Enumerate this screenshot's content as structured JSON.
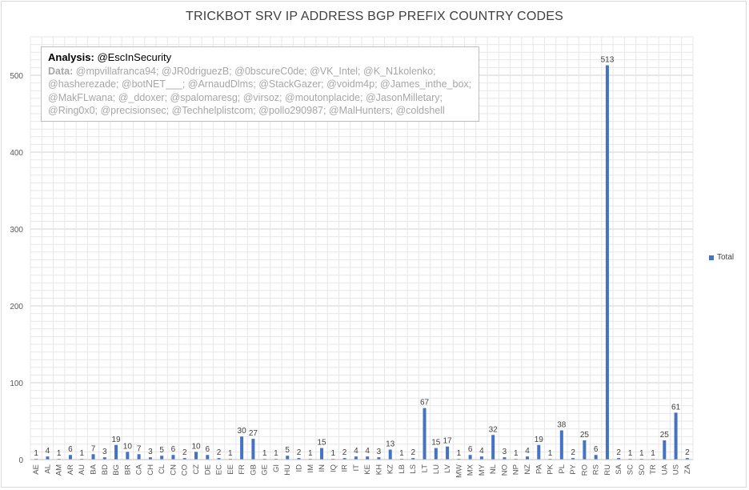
{
  "chart_data": {
    "type": "bar",
    "title": "TRICKBOT SRV IP ADDRESS BGP PREFIX COUNTRY CODES",
    "xlabel": "",
    "ylabel": "",
    "ylim": [
      0,
      550
    ],
    "yticks": [
      0,
      100,
      200,
      300,
      400,
      500
    ],
    "grid": true,
    "legend_position": "right",
    "bar_color": "#4472c4",
    "categories": [
      "AE",
      "AL",
      "AM",
      "AR",
      "AU",
      "BA",
      "BD",
      "BG",
      "BR",
      "CA",
      "CH",
      "CL",
      "CN",
      "CO",
      "CZ",
      "DE",
      "EC",
      "EE",
      "FR",
      "GB",
      "GE",
      "GI",
      "HU",
      "ID",
      "IM",
      "IN",
      "IQ",
      "IR",
      "IT",
      "KE",
      "KH",
      "KZ",
      "LB",
      "LS",
      "LT",
      "LU",
      "LV",
      "MW",
      "MX",
      "MY",
      "NL",
      "NO",
      "NP",
      "NZ",
      "PA",
      "PK",
      "PL",
      "PY",
      "RO",
      "RS",
      "RU",
      "SA",
      "SC",
      "SO",
      "TR",
      "UA",
      "US",
      "ZA"
    ],
    "series": [
      {
        "name": "Total",
        "values": [
          1,
          4,
          1,
          6,
          1,
          7,
          3,
          19,
          10,
          7,
          3,
          5,
          6,
          2,
          10,
          6,
          2,
          1,
          30,
          27,
          1,
          1,
          5,
          2,
          1,
          15,
          1,
          2,
          4,
          4,
          3,
          13,
          1,
          2,
          67,
          15,
          17,
          1,
          6,
          4,
          32,
          3,
          1,
          4,
          19,
          1,
          38,
          2,
          25,
          6,
          513,
          2,
          1,
          1,
          1,
          25,
          61,
          2
        ]
      }
    ]
  },
  "annotation": {
    "analysis_label": "Analysis:",
    "analysis_value": "@EscInSecurity",
    "data_label": "Data:",
    "data_value": "@mpvillafranca94; @JR0driguezB; @0bscureC0de; @VK_Intel; @K_N1kolenko; @hasherezade; @botNET___; @ArnaudDlms; @StackGazer; @voidm4p; @James_inthe_box; @MakFLwana; @_ddoxer; @spalomaresg; @virsoz; @moutonplacide; @JasonMilletary; @Ring0x0; @precisionsec; @Techhelplistcom; @pollo290987; @MalHunters; @coldshell"
  }
}
